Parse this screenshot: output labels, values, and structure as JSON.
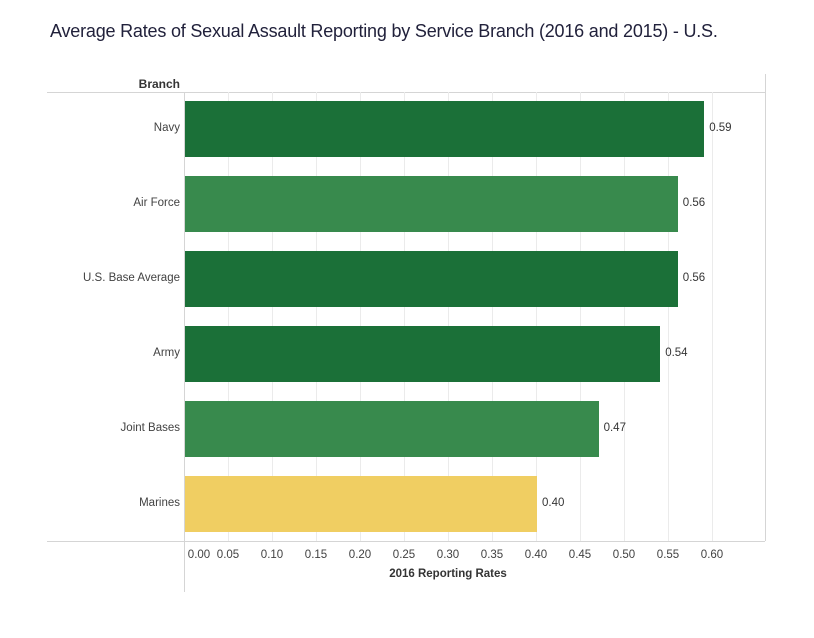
{
  "title": "Average Rates of Sexual Assault Reporting by Service Branch (2016 and 2015) - U.S.",
  "chart_data": {
    "type": "bar",
    "orientation": "horizontal",
    "title": "Average Rates of Sexual Assault Reporting by Service Branch (2016 and 2015) - U.S.",
    "column_header": "Branch",
    "categories": [
      "Navy",
      "Air Force",
      "U.S. Base Average",
      "Army",
      "Joint Bases",
      "Marines"
    ],
    "values": [
      0.59,
      0.56,
      0.56,
      0.54,
      0.47,
      0.4
    ],
    "value_labels": [
      "0.59",
      "0.56",
      "0.56",
      "0.54",
      "0.47",
      "0.40"
    ],
    "bar_colors": [
      "#1B7038",
      "#388A4D",
      "#1B7038",
      "#1B7038",
      "#388A4D",
      "#F0CE62"
    ],
    "xlabel": "2016 Reporting Rates",
    "ylabel": "Branch",
    "x_ticks": [
      "0.00",
      "0.05",
      "0.10",
      "0.15",
      "0.20",
      "0.25",
      "0.30",
      "0.35",
      "0.40",
      "0.45",
      "0.50",
      "0.55",
      "0.60"
    ],
    "x_tick_values": [
      0.0,
      0.05,
      0.1,
      0.15,
      0.2,
      0.25,
      0.3,
      0.35,
      0.4,
      0.45,
      0.5,
      0.55,
      0.6
    ],
    "xlim": [
      0,
      0.66
    ],
    "grid": "vertical",
    "legend": "none"
  },
  "colors": {
    "dark_green": "#1B7038",
    "medium_green": "#388A4D",
    "gold": "#F0CE62",
    "gridline": "#ebebeb",
    "border": "#d5d5d5",
    "label_text": "#424242",
    "title_text": "#21213B"
  }
}
